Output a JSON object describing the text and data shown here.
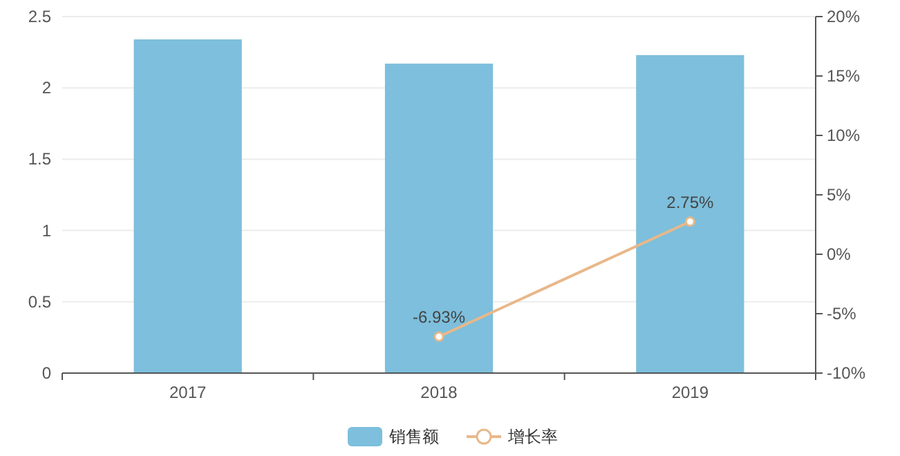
{
  "chart_data": {
    "type": "bar",
    "categories": [
      "2017",
      "2018",
      "2019"
    ],
    "series": [
      {
        "name": "销售额",
        "color": "#7dbfdc",
        "values": [
          2.34,
          2.17,
          2.23
        ]
      },
      {
        "name": "增长率",
        "type": "line",
        "axis": "y2",
        "color": "#e8b88a",
        "marker": "circle",
        "values": [
          null,
          -6.93,
          2.75
        ],
        "value_labels": [
          null,
          "-6.93%",
          "2.75%"
        ]
      }
    ],
    "ylim": [
      0,
      2.5
    ],
    "yticks": [
      0,
      0.5,
      1,
      1.5,
      2,
      2.5
    ],
    "y2lim": [
      -10,
      20
    ],
    "y2ticks": [
      {
        "value": -10,
        "label": "-10%"
      },
      {
        "value": -5,
        "label": "-5%"
      },
      {
        "value": 0,
        "label": "0%"
      },
      {
        "value": 5,
        "label": "5%"
      },
      {
        "value": 10,
        "label": "10%"
      },
      {
        "value": 15,
        "label": "15%"
      },
      {
        "value": 20,
        "label": "20%"
      }
    ],
    "grid": "y",
    "legend": "bottom"
  }
}
